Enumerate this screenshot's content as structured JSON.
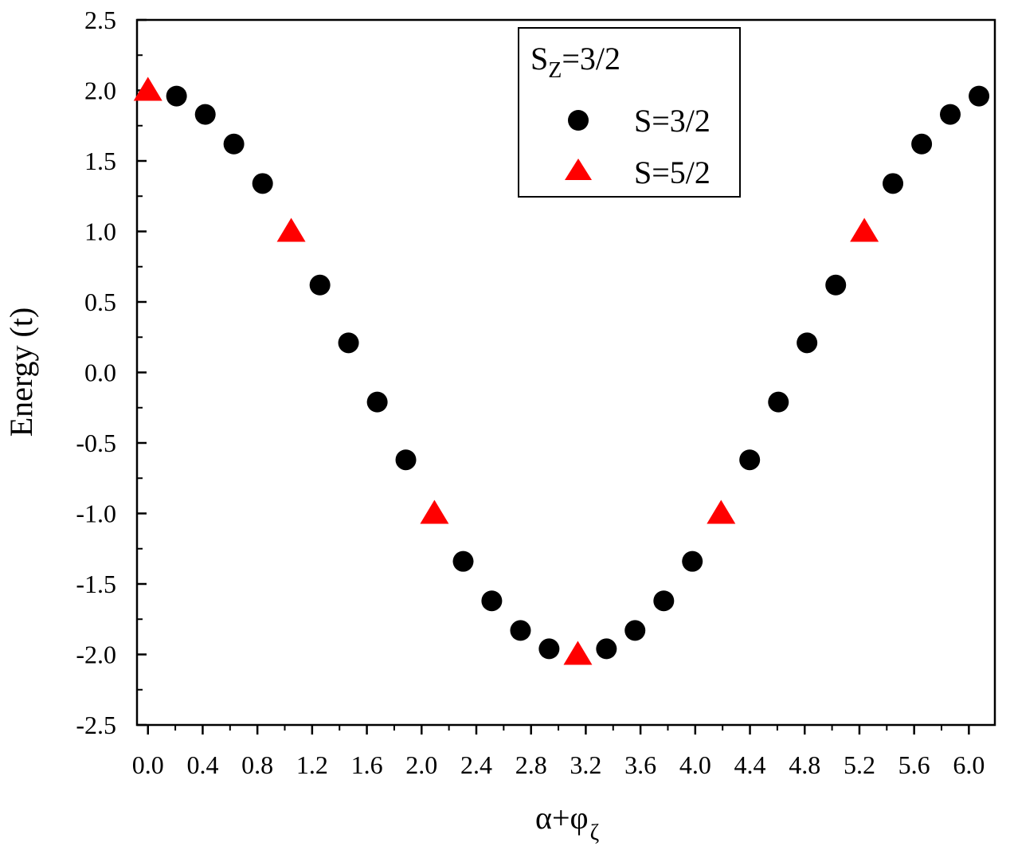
{
  "chart_data": {
    "type": "scatter",
    "xlabel": "α+φ",
    "xlabel_subscript": "ζ",
    "ylabel": "Energy (t)",
    "xlim": [
      -0.08,
      6.19
    ],
    "ylim": [
      -2.5,
      2.5
    ],
    "x_ticks": [
      "0.0",
      "0.4",
      "0.8",
      "1.2",
      "1.6",
      "2.0",
      "2.4",
      "2.8",
      "3.2",
      "3.6",
      "4.0",
      "4.4",
      "4.8",
      "5.2",
      "5.6",
      "6.0"
    ],
    "y_ticks": [
      "2.5",
      "2.0",
      "1.5",
      "1.0",
      "0.5",
      "0.0",
      "-0.5",
      "-1.0",
      "-1.5",
      "-2.0",
      "-2.5"
    ],
    "grid": false,
    "legend_placement": "top-center",
    "legend_title": "S",
    "legend_title_subscript": "Z",
    "legend_title_suffix": "=3/2",
    "series": [
      {
        "name": "S=3/2",
        "marker": "circle",
        "color": "#000000",
        "x": [
          0.209,
          0.419,
          0.628,
          0.838,
          1.257,
          1.466,
          1.676,
          1.885,
          2.304,
          2.513,
          2.723,
          2.932,
          3.351,
          3.56,
          3.77,
          3.979,
          4.398,
          4.608,
          4.817,
          5.027,
          5.445,
          5.655,
          5.864,
          6.074
        ],
        "y": [
          1.96,
          1.83,
          1.62,
          1.34,
          0.62,
          0.21,
          -0.21,
          -0.62,
          -1.34,
          -1.62,
          -1.83,
          -1.96,
          -1.96,
          -1.83,
          -1.62,
          -1.34,
          -0.62,
          -0.21,
          0.21,
          0.62,
          1.34,
          1.62,
          1.83,
          1.96
        ]
      },
      {
        "name": "S=5/2",
        "marker": "triangle",
        "color": "#ff0000",
        "x": [
          0.0,
          1.047,
          2.094,
          3.142,
          4.189,
          5.236
        ],
        "y": [
          2.0,
          1.0,
          -1.0,
          -2.0,
          -1.0,
          1.0
        ]
      }
    ]
  }
}
